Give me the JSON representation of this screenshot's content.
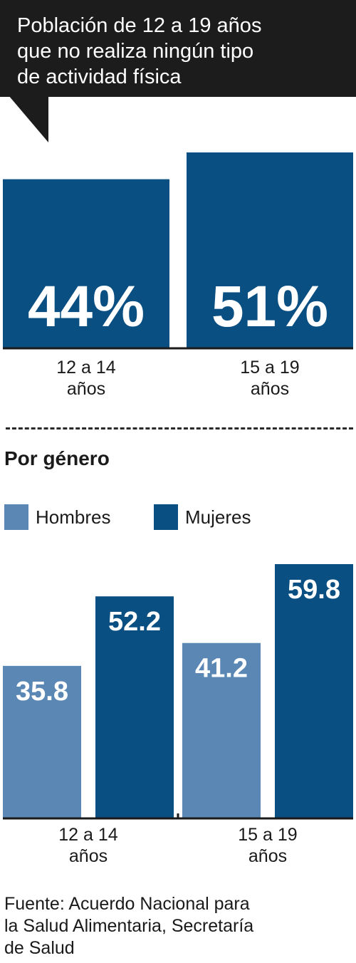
{
  "header": {
    "title": "Población de 12 a 19 años\nque no realiza ningún tipo\nde actividad física",
    "background": "#1c1c1c"
  },
  "chart_data": [
    {
      "type": "bar",
      "categories": [
        "12 a 14\naños",
        "15 a 19\naños"
      ],
      "values": [
        44,
        51
      ],
      "data_labels": [
        "44%",
        "51%"
      ],
      "ylim": [
        0,
        51
      ],
      "color": "#0a4f82",
      "grid": false
    },
    {
      "type": "bar",
      "title": "Por género",
      "categories": [
        "12 a 14\naños",
        "15 a 19\naños"
      ],
      "series": [
        {
          "name": "Hombres",
          "values": [
            35.8,
            41.2
          ],
          "color": "#5b87b5"
        },
        {
          "name": "Mujeres",
          "values": [
            52.2,
            59.8
          ],
          "color": "#0a4f82"
        }
      ],
      "ylim": [
        0,
        59.8
      ],
      "legend": "top-left",
      "grid": false
    }
  ],
  "footer": {
    "source_lines": [
      "Fuente: Acuerdo Nacional para",
      "la Salud Alimentaria, Secretaría",
      "de Salud"
    ]
  }
}
